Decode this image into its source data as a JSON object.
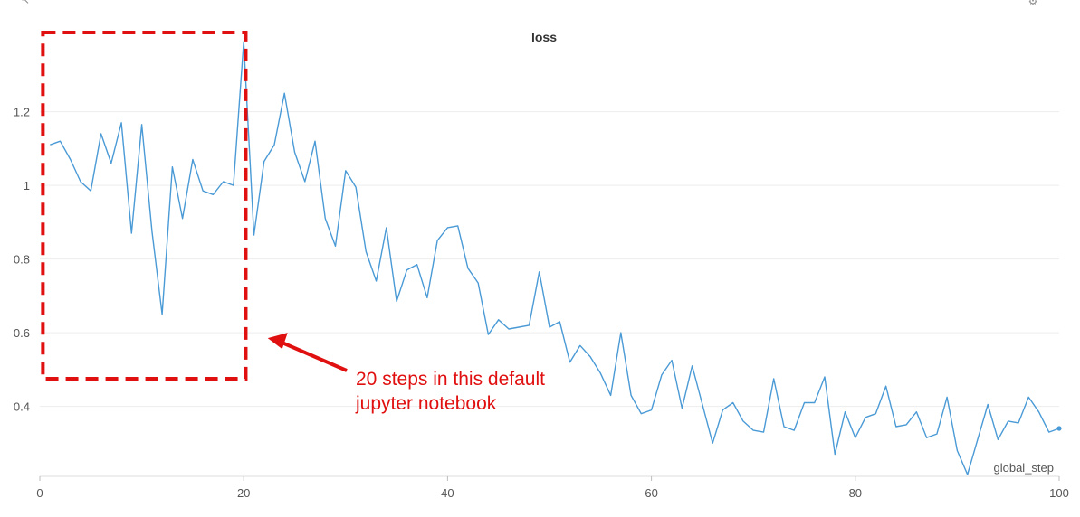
{
  "chart_data": {
    "type": "line",
    "title": "loss",
    "xlabel": "global_step",
    "ylabel": "",
    "xlim": [
      0,
      100
    ],
    "ylim": [
      0.21,
      1.41
    ],
    "x_ticks": [
      0,
      20,
      40,
      60,
      80,
      100
    ],
    "y_ticks": [
      0.4,
      0.6,
      0.8,
      1,
      1.2
    ],
    "x_tick_labels": [
      "0",
      "20",
      "40",
      "60",
      "80",
      "100"
    ],
    "y_tick_labels": [
      "0.4",
      "0.6",
      "0.8",
      "1",
      "1.2"
    ],
    "grid": true,
    "legend": "none",
    "series": [
      {
        "color": "#4a9ad6",
        "x": [
          1,
          2,
          3,
          4,
          5,
          6,
          7,
          8,
          9,
          10,
          11,
          12,
          13,
          14,
          15,
          16,
          17,
          18,
          19,
          20,
          21,
          22,
          23,
          24,
          25,
          26,
          27,
          28,
          29,
          30,
          31,
          32,
          33,
          34,
          35,
          36,
          37,
          38,
          39,
          40,
          41,
          42,
          43,
          44,
          45,
          46,
          47,
          48,
          49,
          50,
          51,
          52,
          53,
          54,
          55,
          56,
          57,
          58,
          59,
          60,
          61,
          62,
          63,
          64,
          65,
          66,
          67,
          68,
          69,
          70,
          71,
          72,
          73,
          74,
          75,
          76,
          77,
          78,
          79,
          80,
          81,
          82,
          83,
          84,
          85,
          86,
          87,
          88,
          89,
          90,
          91,
          92,
          93,
          94,
          95,
          96,
          97,
          98,
          99,
          100
        ],
        "y": [
          1.11,
          1.12,
          1.07,
          1.01,
          0.985,
          1.14,
          1.06,
          1.17,
          0.87,
          1.165,
          0.875,
          0.65,
          1.05,
          0.91,
          1.07,
          0.985,
          0.975,
          1.01,
          1.0,
          1.39,
          0.865,
          1.065,
          1.11,
          1.25,
          1.09,
          1.01,
          1.12,
          0.91,
          0.835,
          1.04,
          0.995,
          0.82,
          0.74,
          0.885,
          0.685,
          0.77,
          0.785,
          0.695,
          0.85,
          0.885,
          0.89,
          0.775,
          0.735,
          0.595,
          0.635,
          0.61,
          0.615,
          0.62,
          0.765,
          0.615,
          0.63,
          0.52,
          0.565,
          0.535,
          0.49,
          0.43,
          0.6,
          0.43,
          0.38,
          0.39,
          0.485,
          0.525,
          0.395,
          0.51,
          0.405,
          0.3,
          0.39,
          0.41,
          0.36,
          0.335,
          0.33,
          0.475,
          0.345,
          0.335,
          0.41,
          0.41,
          0.48,
          0.27,
          0.385,
          0.315,
          0.37,
          0.38,
          0.455,
          0.345,
          0.35,
          0.385,
          0.315,
          0.325,
          0.425,
          0.28,
          0.215,
          0.31,
          0.405,
          0.31,
          0.36,
          0.355,
          0.425,
          0.385,
          0.33,
          0.34
        ]
      }
    ],
    "annotation": {
      "text_lines": [
        "20 steps in this default",
        "jupyter notebook"
      ],
      "color": "#e01010",
      "box_x_range": [
        0.3,
        20.2
      ],
      "box_y_range": [
        0.475,
        1.415
      ],
      "arrow_target": [
        22,
        0.595
      ]
    }
  },
  "icons": {
    "top_left": "arrow-icon",
    "top_right": [
      "gear-icon",
      "more-icon"
    ]
  }
}
